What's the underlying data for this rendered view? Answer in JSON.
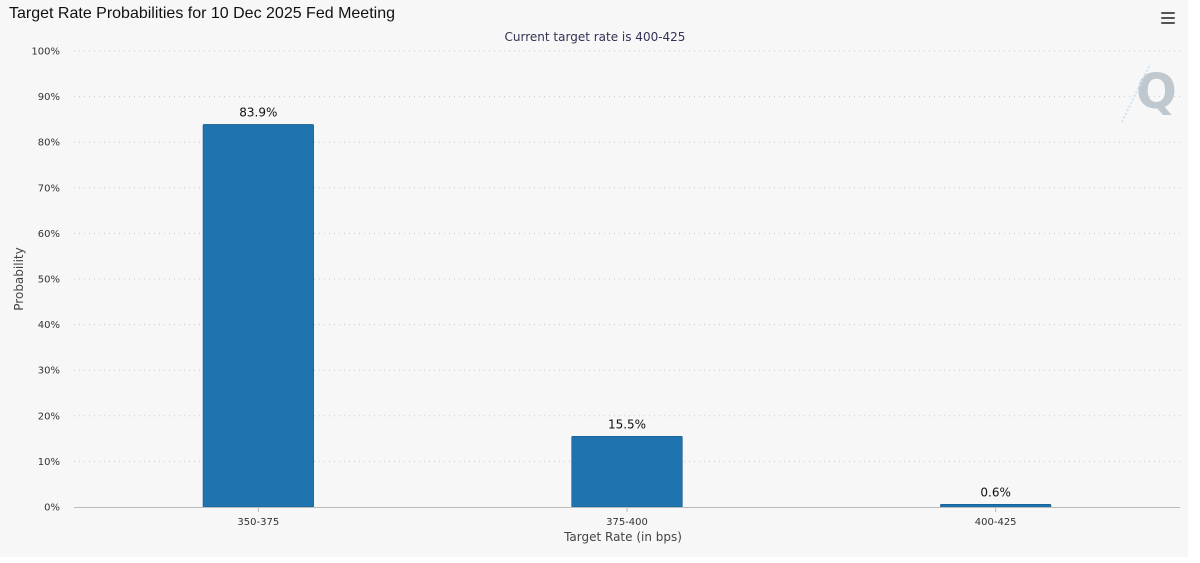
{
  "header": {
    "title": "Target Rate Probabilities for 10 Dec 2025 Fed Meeting",
    "menu_icon": "hamburger-menu-icon"
  },
  "watermark": {
    "text": "Q",
    "icon": "quikstrike-logo-icon"
  },
  "colors": {
    "bar": "#1f74b0",
    "panel": "#f7f7f7",
    "grid": "#c8c8c8"
  },
  "chart_data": {
    "type": "bar",
    "subtitle": "Current target rate is 400-425",
    "xlabel": "Target Rate (in bps)",
    "ylabel": "Probability",
    "categories": [
      "350-375",
      "375-400",
      "400-425"
    ],
    "values": [
      83.9,
      15.5,
      0.6
    ],
    "value_labels": [
      "83.9%",
      "15.5%",
      "0.6%"
    ],
    "ylim": [
      0,
      100
    ],
    "yticks": [
      0,
      10,
      20,
      30,
      40,
      50,
      60,
      70,
      80,
      90,
      100
    ],
    "ytick_labels": [
      "0%",
      "10%",
      "20%",
      "30%",
      "40%",
      "50%",
      "60%",
      "70%",
      "80%",
      "90%",
      "100%"
    ],
    "grid": true,
    "legend": "none"
  }
}
